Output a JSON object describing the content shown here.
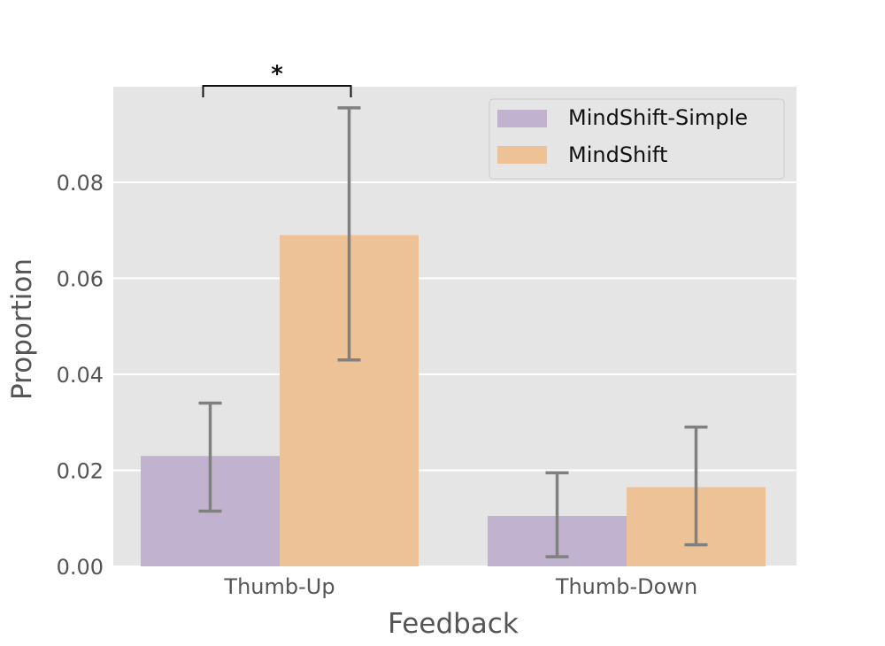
{
  "chart_data": {
    "type": "bar",
    "title": "",
    "xlabel": "Feedback",
    "ylabel": "Proportion",
    "categories": [
      "Thumb-Up",
      "Thumb-Down"
    ],
    "ylim": [
      0,
      0.1
    ],
    "yticks": [
      0,
      0.02,
      0.04,
      0.06,
      0.08
    ],
    "ytick_labels": [
      "0.00",
      "0.02",
      "0.04",
      "0.06",
      "0.08"
    ],
    "grid": true,
    "legend_position": "top-right",
    "series": [
      {
        "name": "MindShift-Simple",
        "color": "#c1b2cf",
        "values": [
          0.023,
          0.0105
        ],
        "error_low": [
          0.0115,
          0.002
        ],
        "error_high": [
          0.034,
          0.0195
        ]
      },
      {
        "name": "MindShift",
        "color": "#eec297",
        "values": [
          0.069,
          0.0165
        ],
        "error_low": [
          0.043,
          0.0045
        ],
        "error_high": [
          0.0955,
          0.029
        ]
      }
    ],
    "annotations": [
      {
        "type": "significance",
        "text": "*",
        "category": "Thumb-Up",
        "between": [
          "MindShift-Simple",
          "MindShift"
        ]
      }
    ],
    "colors": {
      "background": "#e5e5e5",
      "grid": "#ffffff",
      "errorbar": "#808080"
    }
  }
}
